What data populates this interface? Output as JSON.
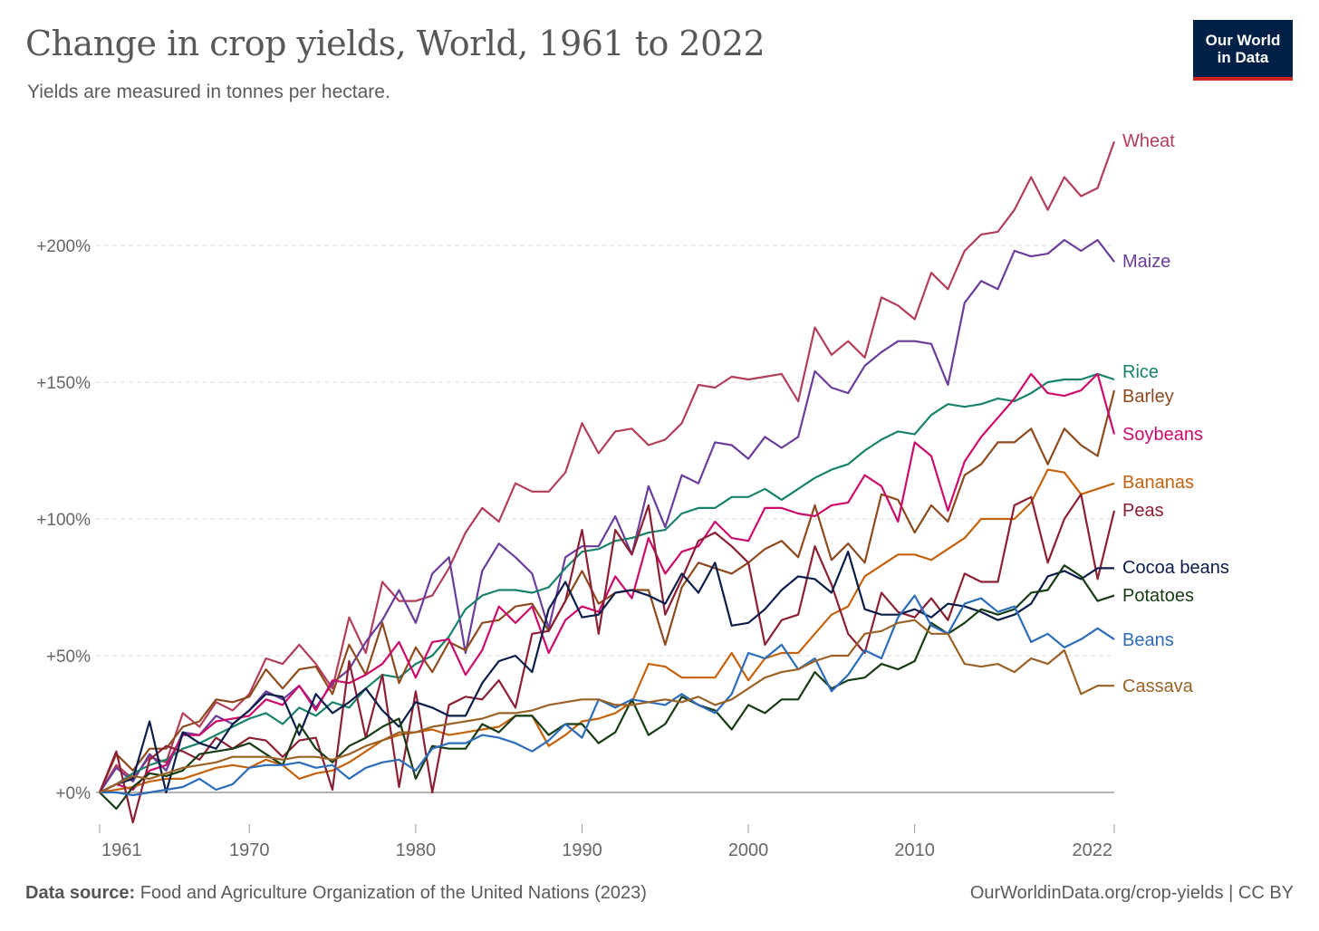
{
  "header": {
    "title": "Change in crop yields, World, 1961 to 2022",
    "subtitle": "Yields are measured in tonnes per hectare.",
    "logo_line1": "Our World",
    "logo_line2": "in Data"
  },
  "footer": {
    "source_label": "Data source:",
    "source_text": "Food and Agriculture Organization of the United Nations (2023)",
    "url": "OurWorldinData.org/crop-yields | CC BY"
  },
  "chart_data": {
    "type": "line",
    "title": "Change in crop yields, World, 1961 to 2022",
    "subtitle": "Yields are measured in tonnes per hectare.",
    "x_start": 1961,
    "x_end": 2022,
    "xlim": [
      1961,
      2022
    ],
    "ylim": [
      -10,
      240
    ],
    "x_ticks": [
      1961,
      1970,
      1980,
      1990,
      2000,
      2010,
      2022
    ],
    "y_ticks": [
      {
        "value": 0,
        "label": "+0%"
      },
      {
        "value": 50,
        "label": "+50%"
      },
      {
        "value": 100,
        "label": "+100%"
      },
      {
        "value": 150,
        "label": "+150%"
      },
      {
        "value": 200,
        "label": "+200%"
      }
    ],
    "grid": "horizontal dashed",
    "legend": "labels at right end of lines",
    "series": [
      {
        "name": "Wheat",
        "color": "#b13e5a",
        "values": [
          0,
          10,
          5,
          13,
          11,
          29,
          24,
          33,
          30,
          36,
          49,
          47,
          54,
          47,
          38,
          64,
          51,
          77,
          70,
          70,
          72,
          82,
          95,
          104,
          99,
          113,
          110,
          110,
          117,
          135,
          124,
          132,
          133,
          127,
          129,
          135,
          149,
          148,
          152,
          151,
          152,
          153,
          143,
          170,
          160,
          165,
          159,
          181,
          178,
          173,
          190,
          184,
          198,
          204,
          205,
          213,
          225,
          213,
          225,
          218,
          221,
          238
        ]
      },
      {
        "name": "Maize",
        "color": "#6b3d9a",
        "values": [
          0,
          9,
          4,
          14,
          8,
          22,
          21,
          28,
          25,
          30,
          37,
          34,
          39,
          31,
          40,
          45,
          55,
          63,
          74,
          62,
          80,
          86,
          51,
          81,
          91,
          86,
          80,
          60,
          86,
          90,
          90,
          101,
          87,
          112,
          97,
          116,
          113,
          128,
          127,
          122,
          130,
          126,
          130,
          154,
          148,
          146,
          156,
          161,
          165,
          165,
          164,
          149,
          179,
          187,
          184,
          198,
          196,
          197,
          202,
          198,
          202,
          194
        ]
      },
      {
        "name": "Rice",
        "color": "#18826b",
        "values": [
          0,
          3,
          7,
          10,
          12,
          16,
          18,
          21,
          24,
          27,
          29,
          25,
          31,
          28,
          33,
          31,
          38,
          43,
          42,
          47,
          50,
          57,
          67,
          72,
          74,
          74,
          73,
          75,
          82,
          88,
          89,
          92,
          93,
          95,
          96,
          102,
          104,
          104,
          108,
          108,
          111,
          107,
          111,
          115,
          118,
          120,
          125,
          129,
          132,
          131,
          138,
          142,
          141,
          142,
          144,
          143,
          146,
          150,
          151,
          151,
          153,
          151
        ]
      },
      {
        "name": "Barley",
        "color": "#8c4a1e",
        "values": [
          0,
          14,
          8,
          16,
          16,
          24,
          26,
          34,
          33,
          35,
          45,
          38,
          45,
          46,
          36,
          54,
          43,
          62,
          40,
          53,
          44,
          55,
          52,
          62,
          63,
          68,
          69,
          59,
          70,
          81,
          69,
          73,
          74,
          74,
          54,
          75,
          84,
          82,
          80,
          84,
          89,
          92,
          86,
          105,
          85,
          91,
          84,
          109,
          107,
          95,
          105,
          99,
          116,
          120,
          128,
          128,
          133,
          120,
          133,
          127,
          123,
          147
        ]
      },
      {
        "name": "Soybeans",
        "color": "#cc0c6b",
        "values": [
          0,
          3,
          1,
          8,
          10,
          21,
          21,
          26,
          27,
          28,
          34,
          32,
          39,
          30,
          41,
          40,
          43,
          47,
          55,
          42,
          55,
          56,
          43,
          52,
          68,
          62,
          68,
          51,
          63,
          68,
          66,
          79,
          71,
          93,
          80,
          88,
          90,
          99,
          93,
          92,
          104,
          104,
          102,
          101,
          105,
          106,
          116,
          112,
          99,
          128,
          123,
          103,
          121,
          130,
          137,
          144,
          153,
          146,
          145,
          147,
          153,
          131
        ]
      },
      {
        "name": "Bananas",
        "color": "#c4620e",
        "values": [
          0,
          1,
          2,
          4,
          5,
          5,
          7,
          9,
          10,
          9,
          12,
          10,
          5,
          7,
          8,
          11,
          15,
          19,
          21,
          22,
          23,
          21,
          22,
          23,
          24,
          28,
          28,
          17,
          21,
          26,
          27,
          29,
          33,
          47,
          46,
          42,
          42,
          42,
          51,
          41,
          49,
          51,
          51,
          58,
          65,
          68,
          79,
          83,
          87,
          87,
          85,
          89,
          93,
          100,
          100,
          100,
          106,
          118,
          117,
          109,
          111,
          113
        ]
      },
      {
        "name": "Peas",
        "color": "#8b1f33",
        "values": [
          0,
          15,
          -11,
          12,
          17,
          15,
          12,
          20,
          16,
          20,
          19,
          13,
          19,
          20,
          1,
          48,
          20,
          43,
          2,
          37,
          0,
          32,
          35,
          34,
          41,
          31,
          58,
          59,
          70,
          96,
          58,
          96,
          87,
          105,
          65,
          78,
          92,
          95,
          90,
          84,
          54,
          63,
          65,
          90,
          76,
          58,
          51,
          73,
          66,
          64,
          71,
          63,
          80,
          77,
          77,
          105,
          108,
          84,
          100,
          109,
          78,
          103
        ]
      },
      {
        "name": "Cocoa beans",
        "color": "#0c1d4a",
        "values": [
          0,
          3,
          5,
          26,
          0,
          22,
          18,
          16,
          25,
          30,
          36,
          35,
          21,
          36,
          29,
          33,
          38,
          30,
          24,
          33,
          31,
          28,
          28,
          40,
          48,
          50,
          44,
          67,
          77,
          64,
          65,
          73,
          74,
          72,
          69,
          80,
          73,
          84,
          61,
          62,
          67,
          74,
          79,
          78,
          73,
          88,
          67,
          65,
          65,
          67,
          64,
          69,
          68,
          66,
          63,
          65,
          69,
          79,
          81,
          78,
          82,
          82
        ]
      },
      {
        "name": "Potatoes",
        "color": "#173c14",
        "values": [
          0,
          -6,
          2,
          7,
          6,
          8,
          14,
          15,
          16,
          18,
          14,
          10,
          25,
          16,
          11,
          17,
          20,
          24,
          27,
          5,
          17,
          16,
          16,
          25,
          22,
          28,
          28,
          21,
          25,
          25,
          18,
          22,
          34,
          21,
          25,
          35,
          32,
          30,
          23,
          32,
          29,
          34,
          34,
          44,
          38,
          41,
          42,
          47,
          45,
          48,
          62,
          58,
          62,
          67,
          65,
          67,
          73,
          74,
          83,
          79,
          70,
          72
        ]
      },
      {
        "name": "Beans",
        "color": "#2c6cb9",
        "values": [
          0,
          0,
          -1,
          0,
          1,
          2,
          5,
          1,
          3,
          9,
          10,
          10,
          11,
          9,
          10,
          5,
          9,
          11,
          12,
          8,
          16,
          18,
          18,
          21,
          20,
          18,
          15,
          19,
          25,
          20,
          34,
          31,
          34,
          33,
          32,
          36,
          32,
          29,
          36,
          51,
          49,
          54,
          45,
          49,
          37,
          43,
          52,
          49,
          64,
          72,
          61,
          58,
          69,
          71,
          66,
          68,
          55,
          58,
          53,
          56,
          60,
          56
        ]
      },
      {
        "name": "Cassava",
        "color": "#9a6226",
        "values": [
          0,
          3,
          6,
          5,
          7,
          9,
          10,
          11,
          13,
          13,
          13,
          12,
          13,
          13,
          12,
          14,
          17,
          19,
          22,
          22,
          24,
          25,
          26,
          27,
          29,
          29,
          30,
          32,
          33,
          34,
          34,
          32,
          32,
          33,
          34,
          33,
          35,
          32,
          34,
          38,
          42,
          44,
          45,
          48,
          50,
          50,
          58,
          59,
          62,
          63,
          58,
          58,
          47,
          46,
          47,
          44,
          49,
          47,
          52,
          36,
          39,
          39
        ]
      }
    ]
  }
}
